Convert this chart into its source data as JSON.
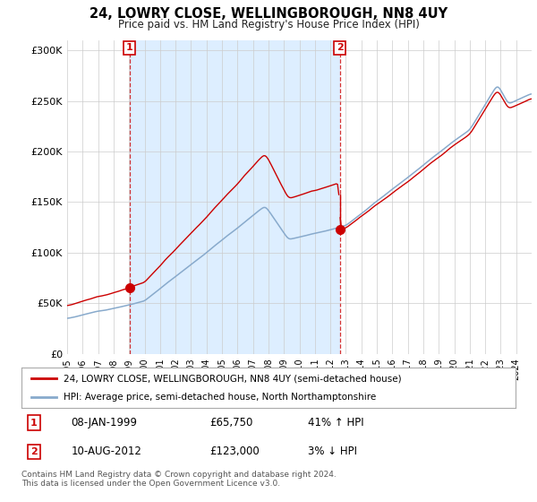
{
  "title": "24, LOWRY CLOSE, WELLINGBOROUGH, NN8 4UY",
  "subtitle": "Price paid vs. HM Land Registry's House Price Index (HPI)",
  "legend_line1": "24, LOWRY CLOSE, WELLINGBOROUGH, NN8 4UY (semi-detached house)",
  "legend_line2": "HPI: Average price, semi-detached house, North Northamptonshire",
  "annotation1_date": "08-JAN-1999",
  "annotation1_price": "£65,750",
  "annotation1_hpi": "41% ↑ HPI",
  "annotation2_date": "10-AUG-2012",
  "annotation2_price": "£123,000",
  "annotation2_hpi": "3% ↓ HPI",
  "footer": "Contains HM Land Registry data © Crown copyright and database right 2024.\nThis data is licensed under the Open Government Licence v3.0.",
  "sold_color": "#cc0000",
  "hpi_color": "#88aacc",
  "shade_color": "#ddeeff",
  "marker_color": "#cc0000",
  "annotation_box_color": "#cc0000",
  "background_color": "#ffffff",
  "grid_color": "#cccccc",
  "ylim": [
    0,
    310000
  ],
  "yticks": [
    0,
    50000,
    100000,
    150000,
    200000,
    250000,
    300000
  ],
  "figsize": [
    6.0,
    5.6
  ],
  "dpi": 100,
  "t_sale1": 1999.02,
  "t_sale2": 2012.61,
  "price_sale1": 65750,
  "price_sale2": 123000
}
